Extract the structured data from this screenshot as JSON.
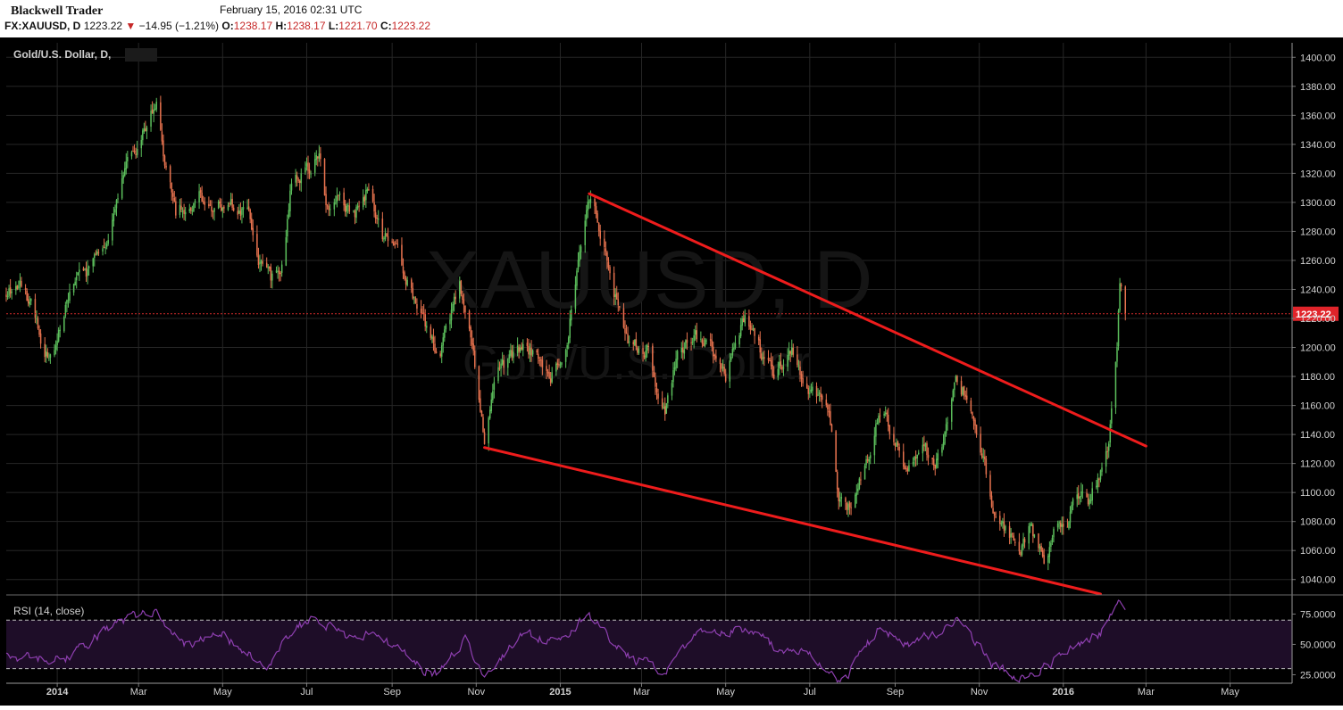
{
  "header": {
    "brand": "Blackwell Trader",
    "timestamp": "February 15, 2016 02:31 UTC",
    "symbol_label": "FX:XAUUSD, D",
    "last_price": "1223.22",
    "change": "−14.95 (−1.21%)",
    "open_label": "O:",
    "open": "1238.17",
    "high_label": "H:",
    "high": "1238.17",
    "low_label": "L:",
    "low": "1221.70",
    "close_label": "C:",
    "close": "1223.22"
  },
  "main": {
    "title": "Gold/U.S. Dollar, D,",
    "watermark_symbol": "XAUUSD, D",
    "watermark_name": "Gold/U.S. Dollar",
    "price_tag": "1223.22",
    "rsi_label": "RSI (14, close)"
  },
  "colors": {
    "up": "#5cbf5c",
    "down": "#e8734f",
    "trendline": "#ee1c1c",
    "rsi": "#8e3fb0",
    "rsi_band": "#1e0d28",
    "price_tag_bg": "#e0242a",
    "background": "#000000"
  },
  "chart_data": [
    {
      "type": "candlestick",
      "title": "Gold/U.S. Dollar, D,",
      "symbol": "FX:XAUUSD",
      "timeframe": "D",
      "ylim": [
        1030,
        1410
      ],
      "y_ticks": [
        "1400.00",
        "1380.00",
        "1360.00",
        "1340.00",
        "1320.00",
        "1300.00",
        "1280.00",
        "1260.00",
        "1240.00",
        "1220.00",
        "1200.00",
        "1180.00",
        "1160.00",
        "1140.00",
        "1120.00",
        "1100.00",
        "1080.00",
        "1060.00",
        "1040.00"
      ],
      "x_ticks": [
        "2014",
        "Mar",
        "May",
        "Jul",
        "Sep",
        "Nov",
        "2015",
        "Mar",
        "May",
        "Jul",
        "Sep",
        "Nov",
        "2016",
        "Mar",
        "May"
      ],
      "xlim": [
        "2013-11-25",
        "2016-06-15"
      ],
      "last_close": 1223.22,
      "path": [
        [
          "2013-11-25",
          1236
        ],
        [
          "2013-12-05",
          1242
        ],
        [
          "2013-12-15",
          1225
        ],
        [
          "2013-12-22",
          1200
        ],
        [
          "2013-12-28",
          1195
        ],
        [
          "2014-01-10",
          1240
        ],
        [
          "2014-01-25",
          1252
        ],
        [
          "2014-02-08",
          1272
        ],
        [
          "2014-02-18",
          1320
        ],
        [
          "2014-03-01",
          1338
        ],
        [
          "2014-03-14",
          1370
        ],
        [
          "2014-03-20",
          1330
        ],
        [
          "2014-03-28",
          1292
        ],
        [
          "2014-04-05",
          1300
        ],
        [
          "2014-04-15",
          1305
        ],
        [
          "2014-04-25",
          1295
        ],
        [
          "2014-05-05",
          1300
        ],
        [
          "2014-05-20",
          1292
        ],
        [
          "2014-05-28",
          1258
        ],
        [
          "2014-06-05",
          1245
        ],
        [
          "2014-06-15",
          1262
        ],
        [
          "2014-06-20",
          1313
        ],
        [
          "2014-07-01",
          1322
        ],
        [
          "2014-07-10",
          1335
        ],
        [
          "2014-07-15",
          1300
        ],
        [
          "2014-07-25",
          1302
        ],
        [
          "2014-08-05",
          1292
        ],
        [
          "2014-08-15",
          1310
        ],
        [
          "2014-08-25",
          1278
        ],
        [
          "2014-09-05",
          1265
        ],
        [
          "2014-09-15",
          1236
        ],
        [
          "2014-09-25",
          1215
        ],
        [
          "2014-10-05",
          1192
        ],
        [
          "2014-10-20",
          1246
        ],
        [
          "2014-10-30",
          1198
        ],
        [
          "2014-11-07",
          1138
        ],
        [
          "2014-11-15",
          1180
        ],
        [
          "2014-11-25",
          1190
        ],
        [
          "2014-12-05",
          1200
        ],
        [
          "2014-12-15",
          1196
        ],
        [
          "2014-12-25",
          1182
        ],
        [
          "2015-01-05",
          1200
        ],
        [
          "2015-01-15",
          1262
        ],
        [
          "2015-01-22",
          1302
        ],
        [
          "2015-02-01",
          1275
        ],
        [
          "2015-02-10",
          1236
        ],
        [
          "2015-02-20",
          1205
        ],
        [
          "2015-03-05",
          1198
        ],
        [
          "2015-03-18",
          1152
        ],
        [
          "2015-03-28",
          1198
        ],
        [
          "2015-04-08",
          1208
        ],
        [
          "2015-04-20",
          1202
        ],
        [
          "2015-05-01",
          1180
        ],
        [
          "2015-05-15",
          1222
        ],
        [
          "2015-05-25",
          1200
        ],
        [
          "2015-06-05",
          1180
        ],
        [
          "2015-06-18",
          1198
        ],
        [
          "2015-06-28",
          1175
        ],
        [
          "2015-07-05",
          1168
        ],
        [
          "2015-07-15",
          1152
        ],
        [
          "2015-07-22",
          1098
        ],
        [
          "2015-08-01",
          1088
        ],
        [
          "2015-08-10",
          1118
        ],
        [
          "2015-08-22",
          1160
        ],
        [
          "2015-09-01",
          1135
        ],
        [
          "2015-09-10",
          1110
        ],
        [
          "2015-09-20",
          1135
        ],
        [
          "2015-09-30",
          1115
        ],
        [
          "2015-10-10",
          1150
        ],
        [
          "2015-10-15",
          1182
        ],
        [
          "2015-10-22",
          1168
        ],
        [
          "2015-11-01",
          1140
        ],
        [
          "2015-11-10",
          1090
        ],
        [
          "2015-11-20",
          1075
        ],
        [
          "2015-12-01",
          1062
        ],
        [
          "2015-12-08",
          1076
        ],
        [
          "2015-12-18",
          1055
        ],
        [
          "2015-12-25",
          1070
        ],
        [
          "2016-01-05",
          1082
        ],
        [
          "2016-01-12",
          1098
        ],
        [
          "2016-01-20",
          1095
        ],
        [
          "2016-01-28",
          1115
        ],
        [
          "2016-02-02",
          1128
        ],
        [
          "2016-02-05",
          1155
        ],
        [
          "2016-02-09",
          1195
        ],
        [
          "2016-02-11",
          1245
        ],
        [
          "2016-02-12",
          1238
        ],
        [
          "2016-02-15",
          1223
        ]
      ],
      "annotations": [
        {
          "type": "trendline",
          "from": [
            "2015-01-22",
            1306
          ],
          "to": [
            "2016-03-01",
            1132
          ]
        },
        {
          "type": "trendline",
          "from": [
            "2014-11-07",
            1131
          ],
          "to": [
            "2016-01-28",
            1030
          ]
        },
        {
          "type": "hline",
          "value": 1223.22,
          "style": "dashed",
          "label": "1223.22"
        }
      ]
    },
    {
      "type": "line",
      "title": "RSI (14, close)",
      "ylim": [
        18,
        90
      ],
      "y_ticks": [
        "75.0000",
        "50.0000",
        "25.0000"
      ],
      "bands": [
        30,
        70
      ],
      "approx_values": [
        [
          "2013-11-25",
          40
        ],
        [
          "2014-01-05",
          38
        ],
        [
          "2014-02-15",
          68
        ],
        [
          "2014-03-14",
          76
        ],
        [
          "2014-04-01",
          50
        ],
        [
          "2014-05-01",
          58
        ],
        [
          "2014-06-01",
          30
        ],
        [
          "2014-06-25",
          66
        ],
        [
          "2014-07-10",
          70
        ],
        [
          "2014-08-01",
          55
        ],
        [
          "2014-08-20",
          60
        ],
        [
          "2014-09-15",
          35
        ],
        [
          "2014-10-05",
          25
        ],
        [
          "2014-10-25",
          55
        ],
        [
          "2014-11-07",
          22
        ],
        [
          "2014-12-01",
          55
        ],
        [
          "2015-01-05",
          58
        ],
        [
          "2015-01-22",
          74
        ],
        [
          "2015-02-20",
          40
        ],
        [
          "2015-03-18",
          27
        ],
        [
          "2015-04-10",
          58
        ],
        [
          "2015-05-15",
          62
        ],
        [
          "2015-06-10",
          45
        ],
        [
          "2015-07-01",
          45
        ],
        [
          "2015-07-22",
          16
        ],
        [
          "2015-08-22",
          65
        ],
        [
          "2015-09-10",
          48
        ],
        [
          "2015-10-15",
          70
        ],
        [
          "2015-11-15",
          28
        ],
        [
          "2015-12-05",
          22
        ],
        [
          "2016-01-05",
          45
        ],
        [
          "2016-01-28",
          58
        ],
        [
          "2016-02-11",
          88
        ],
        [
          "2016-02-15",
          78
        ]
      ]
    }
  ]
}
